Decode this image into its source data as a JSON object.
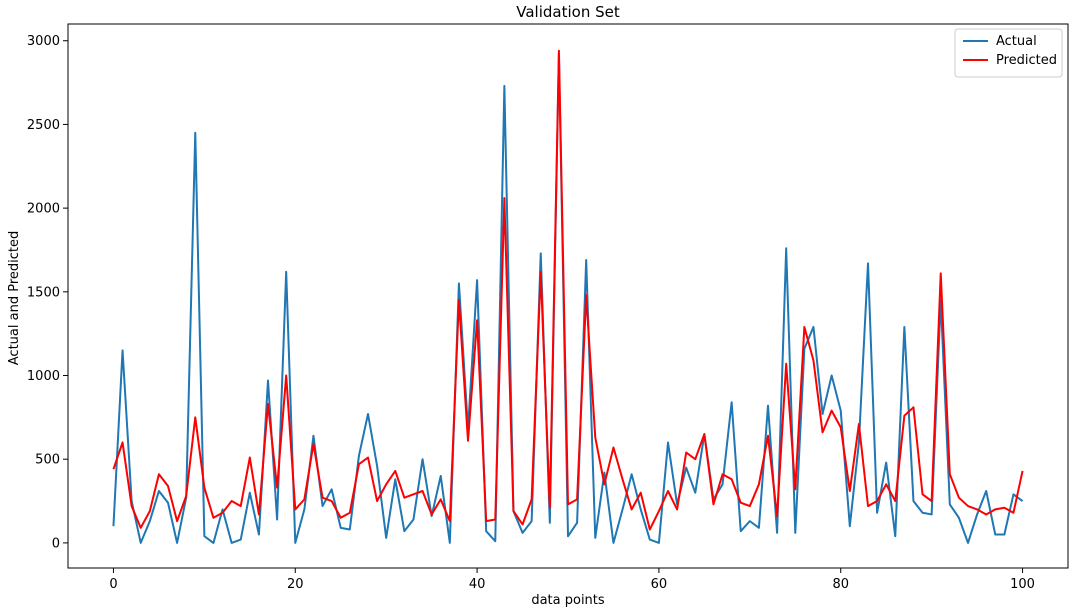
{
  "chart_data": {
    "type": "line",
    "title": "Validation Set",
    "xlabel": "data points",
    "ylabel": "Actual and Predicted",
    "xlim": [
      -5,
      105
    ],
    "ylim": [
      -150,
      3100
    ],
    "xticks": [
      0,
      20,
      40,
      60,
      80,
      100
    ],
    "yticks": [
      0,
      500,
      1000,
      1500,
      2000,
      2500,
      3000
    ],
    "grid": false,
    "legend_position": "top-right",
    "x": [
      0,
      1,
      2,
      3,
      4,
      5,
      6,
      7,
      8,
      9,
      10,
      11,
      12,
      13,
      14,
      15,
      16,
      17,
      18,
      19,
      20,
      21,
      22,
      23,
      24,
      25,
      26,
      27,
      28,
      29,
      30,
      31,
      32,
      33,
      34,
      35,
      36,
      37,
      38,
      39,
      40,
      41,
      42,
      43,
      44,
      45,
      46,
      47,
      48,
      49,
      50,
      51,
      52,
      53,
      54,
      55,
      56,
      57,
      58,
      59,
      60,
      61,
      62,
      63,
      64,
      65,
      66,
      67,
      68,
      69,
      70,
      71,
      72,
      73,
      74,
      75,
      76,
      77,
      78,
      79,
      80,
      81,
      82,
      83,
      84,
      85,
      86,
      87,
      88,
      89,
      90,
      91,
      92,
      93,
      94,
      95,
      96,
      97,
      98,
      99,
      100
    ],
    "series": [
      {
        "name": "Actual",
        "color": "#1f77b4",
        "values": [
          100,
          1150,
          250,
          0,
          130,
          310,
          240,
          0,
          270,
          2450,
          40,
          0,
          200,
          0,
          20,
          300,
          50,
          970,
          140,
          1620,
          0,
          200,
          640,
          220,
          320,
          90,
          80,
          520,
          770,
          460,
          30,
          380,
          70,
          140,
          500,
          160,
          400,
          0,
          1550,
          680,
          1570,
          70,
          10,
          2730,
          190,
          60,
          130,
          1730,
          120,
          2920,
          40,
          120,
          1690,
          30,
          420,
          0,
          200,
          410,
          200,
          20,
          0,
          600,
          230,
          450,
          300,
          650,
          260,
          350,
          840,
          70,
          130,
          90,
          820,
          60,
          1760,
          60,
          1160,
          1290,
          770,
          1000,
          790,
          100,
          600,
          1670,
          180,
          480,
          40,
          1290,
          250,
          180,
          170,
          1450,
          230,
          150,
          0,
          170,
          310,
          50,
          50,
          290,
          250
        ]
      },
      {
        "name": "Predicted",
        "color": "#ff0000",
        "values": [
          440,
          600,
          220,
          90,
          190,
          410,
          340,
          130,
          280,
          750,
          330,
          150,
          180,
          250,
          220,
          510,
          170,
          830,
          330,
          1000,
          200,
          260,
          590,
          270,
          250,
          150,
          180,
          470,
          510,
          250,
          350,
          430,
          270,
          290,
          310,
          170,
          260,
          130,
          1450,
          610,
          1330,
          130,
          140,
          2060,
          190,
          110,
          260,
          1620,
          210,
          2940,
          230,
          260,
          1480,
          630,
          350,
          570,
          380,
          200,
          300,
          80,
          190,
          310,
          200,
          540,
          500,
          650,
          230,
          410,
          380,
          240,
          220,
          350,
          640,
          160,
          1070,
          320,
          1290,
          1090,
          660,
          790,
          690,
          310,
          710,
          220,
          250,
          350,
          250,
          760,
          810,
          290,
          250,
          1610,
          410,
          270,
          220,
          200,
          170,
          200,
          210,
          180,
          430
        ]
      }
    ]
  }
}
